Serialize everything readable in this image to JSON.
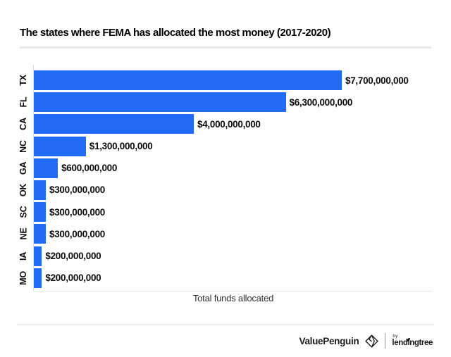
{
  "title": "The states where FEMA has allocated the most money (2017-2020)",
  "chart_data": {
    "type": "bar",
    "orientation": "horizontal",
    "title": "The states where FEMA has allocated the most money (2017-2020)",
    "categories": [
      "TX",
      "FL",
      "CA",
      "NC",
      "GA",
      "OK",
      "SC",
      "NE",
      "IA",
      "MO"
    ],
    "values": [
      7700000000,
      6300000000,
      4000000000,
      1300000000,
      600000000,
      300000000,
      300000000,
      300000000,
      200000000,
      200000000
    ],
    "value_labels": [
      "$7,700,000,000",
      "$6,300,000,000",
      "$4,000,000,000",
      "$1,300,000,000",
      "$600,000,000",
      "$300,000,000",
      "$300,000,000",
      "$300,000,000",
      "$200,000,000",
      "$200,000,000"
    ],
    "xlabel": "Total funds allocated",
    "ylabel": "",
    "xlim": [
      0,
      7700000000
    ],
    "grid": false,
    "legend": false,
    "bar_color": "#226cf5"
  },
  "footer": {
    "brand": "ValuePenguin",
    "brand_icon": "origami-penguin-icon",
    "by_label": "by",
    "partner": "lendingtree"
  }
}
